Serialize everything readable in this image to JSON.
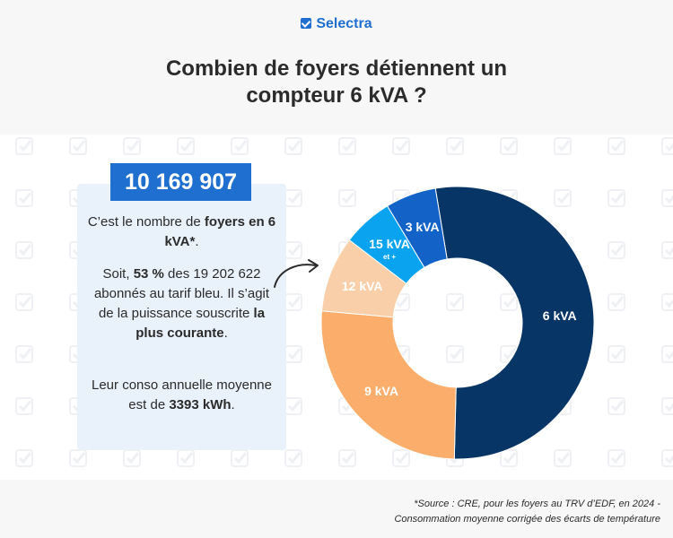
{
  "brand": {
    "name": "Selectra",
    "color": "#1e6fcf"
  },
  "title": {
    "line1": "Combien de foyers détiennent un",
    "line2": "compteur 6 kVA ?"
  },
  "highlight": {
    "value": "10 169 907"
  },
  "text": {
    "p1_a": "C’est le nombre de ",
    "p1_b": "foyers en 6 kVA*",
    "p1_c": ".",
    "p2_a": "Soit, ",
    "p2_b": "53 %",
    "p2_c": " des 19 202 622 abonnés au tarif bleu. Il s’agit de la puissance souscrite ",
    "p2_d": "la plus courante",
    "p2_e": ".",
    "p3_a": "Leur conso annuelle moyenne est de ",
    "p3_b": "3393 kWh",
    "p3_c": "."
  },
  "source": {
    "line1": "*Source : CRE, pour les foyers au TRV d’EDF, en 2024 -",
    "line2": "Consommation moyenne corrigée des écarts de température"
  },
  "chart_data": {
    "type": "pie",
    "donut": true,
    "values_unit": "%",
    "slices": [
      {
        "label": "6 kVA",
        "sublabel": "",
        "value": 53,
        "color": "#073566"
      },
      {
        "label": "9 kVA",
        "sublabel": "",
        "value": 26,
        "color": "#fbae6b"
      },
      {
        "label": "12 kVA",
        "sublabel": "",
        "value": 9,
        "color": "#f8cfa8"
      },
      {
        "label": "15 kVA",
        "sublabel": "et +",
        "value": 6,
        "color": "#0aa3ef"
      },
      {
        "label": "3 kVA",
        "sublabel": "",
        "value": 6,
        "color": "#1262c7"
      }
    ]
  }
}
